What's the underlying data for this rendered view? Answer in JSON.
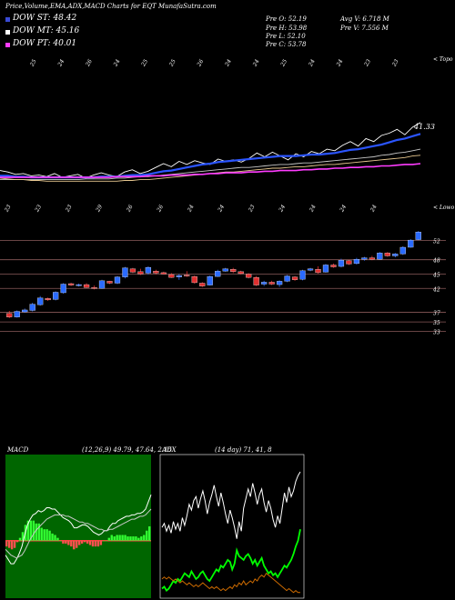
{
  "header": {
    "title": "Price,Volume,EMA,ADX,MACD Charts for EQT MunafaSutra.com"
  },
  "legend": [
    {
      "label": "DOW ST: 48.42",
      "color": "#3a4bd6"
    },
    {
      "label": "DOW MT: 45.16",
      "color": "#ffffff"
    },
    {
      "label": "DOW PT: 40.01",
      "color": "#ff3cff"
    }
  ],
  "stats": [
    {
      "label": "Pre  O: 52.19"
    },
    {
      "label": "Pre  H: 53.98"
    },
    {
      "label": "Pre  L: 52.10"
    },
    {
      "label": "Pre  C: 53.78"
    },
    {
      "label": "Avg V: 6.718  M"
    },
    {
      "label": "Pre  V: 7.556  M"
    }
  ],
  "ema_panel": {
    "top_right_label": "< Topo",
    "bottom_right_label": "< Lowo",
    "price_label": "41.33",
    "top_ticks": [
      "25",
      "24",
      "26",
      "24",
      "25",
      "25",
      "26",
      "24",
      "24",
      "25",
      "24",
      "24",
      "23",
      "23"
    ],
    "bottom_ticks": [
      "23",
      "23",
      "23",
      "29",
      "26",
      "26",
      "24",
      "24",
      "23",
      "24",
      "24",
      "24",
      "24"
    ]
  },
  "chart_data": [
    {
      "type": "line",
      "title": "",
      "series": [
        {
          "name": "",
          "color": "#ffffff",
          "values": [
            36.2,
            36.0,
            35.7,
            35.8,
            35.5,
            35.6,
            35.4,
            35.8,
            35.3,
            35.5,
            35.7,
            35.2,
            35.6,
            35.9,
            35.6,
            35.4,
            36.0,
            36.3,
            35.8,
            36.1,
            36.6,
            37.1,
            36.7,
            37.4,
            37.0,
            37.5,
            37.2,
            37.0,
            37.7,
            37.4,
            37.6,
            37.3,
            37.8,
            38.5,
            38.0,
            38.6,
            38.1,
            37.6,
            38.4,
            38.0,
            38.7,
            38.4,
            39.0,
            38.8,
            39.5,
            40.0,
            39.4,
            40.4,
            40.0,
            40.8,
            41.1,
            41.6,
            40.9,
            41.9,
            42.5
          ]
        },
        {
          "name": "",
          "color": "#2b55ff",
          "values": [
            35.5,
            35.5,
            35.4,
            35.4,
            35.3,
            35.3,
            35.3,
            35.3,
            35.3,
            35.3,
            35.3,
            35.3,
            35.3,
            35.4,
            35.4,
            35.4,
            35.5,
            35.6,
            35.6,
            35.7,
            35.9,
            36.1,
            36.2,
            36.4,
            36.6,
            36.8,
            37.0,
            37.1,
            37.3,
            37.4,
            37.5,
            37.6,
            37.7,
            37.8,
            37.9,
            38.0,
            38.1,
            38.1,
            38.1,
            38.2,
            38.3,
            38.3,
            38.4,
            38.5,
            38.7,
            38.9,
            39.0,
            39.2,
            39.4,
            39.6,
            39.9,
            40.2,
            40.4,
            40.7,
            41.0
          ]
        },
        {
          "name": "",
          "color": "#c8c8c8",
          "values": [
            35.0,
            35.0,
            35.0,
            35.0,
            35.0,
            35.0,
            35.0,
            35.0,
            35.0,
            35.0,
            35.0,
            35.1,
            35.1,
            35.1,
            35.1,
            35.2,
            35.2,
            35.3,
            35.4,
            35.4,
            35.5,
            35.6,
            35.7,
            35.8,
            35.9,
            36.0,
            36.1,
            36.2,
            36.3,
            36.4,
            36.5,
            36.6,
            36.6,
            36.7,
            36.8,
            36.9,
            37.0,
            37.0,
            37.1,
            37.2,
            37.2,
            37.3,
            37.4,
            37.5,
            37.6,
            37.7,
            37.8,
            37.9,
            38.0,
            38.2,
            38.3,
            38.5,
            38.6,
            38.8,
            39.0
          ]
        },
        {
          "name": "",
          "color": "#e8c890",
          "values": [
            35.2,
            35.1,
            35.0,
            35.0,
            34.9,
            34.9,
            34.8,
            34.8,
            34.8,
            34.8,
            34.8,
            34.8,
            34.8,
            34.8,
            34.8,
            34.8,
            34.9,
            34.9,
            35.0,
            35.0,
            35.1,
            35.2,
            35.3,
            35.4,
            35.5,
            35.6,
            35.7,
            35.8,
            35.9,
            36.0,
            36.0,
            36.1,
            36.2,
            36.3,
            36.4,
            36.5,
            36.5,
            36.6,
            36.7,
            36.7,
            36.8,
            36.9,
            37.0,
            37.0,
            37.1,
            37.2,
            37.3,
            37.4,
            37.5,
            37.6,
            37.7,
            37.8,
            37.9,
            38.1,
            38.2
          ]
        },
        {
          "name": "",
          "color": "#ff3cff",
          "values": [
            35.3,
            35.3,
            35.3,
            35.3,
            35.3,
            35.3,
            35.3,
            35.3,
            35.3,
            35.3,
            35.3,
            35.3,
            35.3,
            35.3,
            35.3,
            35.4,
            35.4,
            35.4,
            35.4,
            35.5,
            35.5,
            35.5,
            35.6,
            35.6,
            35.6,
            35.7,
            35.7,
            35.8,
            35.8,
            35.9,
            35.9,
            35.9,
            36.0,
            36.0,
            36.1,
            36.1,
            36.2,
            36.2,
            36.2,
            36.3,
            36.3,
            36.4,
            36.4,
            36.5,
            36.5,
            36.6,
            36.6,
            36.7,
            36.7,
            36.8,
            36.8,
            36.9,
            37.0,
            37.0,
            37.1
          ]
        }
      ],
      "ylim": [
        34,
        44.5
      ]
    },
    {
      "type": "candlestick",
      "y_ticks": [
        52,
        48,
        45,
        42,
        37,
        35,
        33
      ],
      "ylim": [
        31.6,
        54.4
      ],
      "candles": [
        {
          "o": 36.8,
          "h": 37.3,
          "l": 35.8,
          "c": 36.0
        },
        {
          "o": 36.0,
          "h": 37.4,
          "l": 35.9,
          "c": 37.2
        },
        {
          "o": 37.1,
          "h": 37.8,
          "l": 36.9,
          "c": 37.5
        },
        {
          "o": 37.4,
          "h": 39.0,
          "l": 37.2,
          "c": 38.7
        },
        {
          "o": 38.6,
          "h": 40.4,
          "l": 38.4,
          "c": 40.0
        },
        {
          "o": 39.9,
          "h": 40.1,
          "l": 39.4,
          "c": 39.6
        },
        {
          "o": 39.7,
          "h": 41.4,
          "l": 39.5,
          "c": 41.2
        },
        {
          "o": 41.1,
          "h": 43.1,
          "l": 40.9,
          "c": 42.9
        },
        {
          "o": 43.0,
          "h": 43.2,
          "l": 42.5,
          "c": 42.7
        },
        {
          "o": 42.6,
          "h": 43.0,
          "l": 42.4,
          "c": 42.8
        },
        {
          "o": 42.8,
          "h": 43.1,
          "l": 42.1,
          "c": 42.2
        },
        {
          "o": 42.2,
          "h": 42.6,
          "l": 41.8,
          "c": 42.0
        },
        {
          "o": 42.0,
          "h": 43.8,
          "l": 41.9,
          "c": 43.6
        },
        {
          "o": 43.5,
          "h": 43.6,
          "l": 42.9,
          "c": 43.1
        },
        {
          "o": 43.1,
          "h": 44.6,
          "l": 42.9,
          "c": 44.4
        },
        {
          "o": 44.4,
          "h": 46.5,
          "l": 44.1,
          "c": 46.3
        },
        {
          "o": 46.1,
          "h": 46.3,
          "l": 45.2,
          "c": 45.4
        },
        {
          "o": 45.5,
          "h": 46.1,
          "l": 44.8,
          "c": 45.0
        },
        {
          "o": 45.2,
          "h": 46.6,
          "l": 44.9,
          "c": 46.4
        },
        {
          "o": 45.6,
          "h": 45.9,
          "l": 44.9,
          "c": 45.2
        },
        {
          "o": 45.3,
          "h": 45.5,
          "l": 44.9,
          "c": 45.0
        },
        {
          "o": 44.9,
          "h": 45.2,
          "l": 44.2,
          "c": 44.3
        },
        {
          "o": 44.4,
          "h": 45.0,
          "l": 43.8,
          "c": 44.7
        },
        {
          "o": 44.8,
          "h": 45.6,
          "l": 44.4,
          "c": 44.6
        },
        {
          "o": 44.5,
          "h": 44.7,
          "l": 43.0,
          "c": 43.2
        },
        {
          "o": 43.1,
          "h": 43.3,
          "l": 42.3,
          "c": 42.5
        },
        {
          "o": 42.7,
          "h": 44.7,
          "l": 42.6,
          "c": 44.5
        },
        {
          "o": 44.5,
          "h": 45.9,
          "l": 44.4,
          "c": 45.6
        },
        {
          "o": 45.6,
          "h": 46.3,
          "l": 45.5,
          "c": 46.1
        },
        {
          "o": 46.0,
          "h": 46.3,
          "l": 45.2,
          "c": 45.5
        },
        {
          "o": 45.5,
          "h": 45.7,
          "l": 44.9,
          "c": 45.1
        },
        {
          "o": 45.0,
          "h": 45.2,
          "l": 44.1,
          "c": 44.3
        },
        {
          "o": 44.3,
          "h": 44.6,
          "l": 42.5,
          "c": 42.7
        },
        {
          "o": 42.9,
          "h": 43.6,
          "l": 42.5,
          "c": 43.3
        },
        {
          "o": 43.3,
          "h": 43.6,
          "l": 42.7,
          "c": 42.9
        },
        {
          "o": 42.8,
          "h": 43.7,
          "l": 42.3,
          "c": 43.5
        },
        {
          "o": 43.5,
          "h": 44.8,
          "l": 43.3,
          "c": 44.6
        },
        {
          "o": 44.4,
          "h": 44.6,
          "l": 43.6,
          "c": 43.8
        },
        {
          "o": 43.9,
          "h": 45.9,
          "l": 43.7,
          "c": 45.7
        },
        {
          "o": 45.8,
          "h": 46.3,
          "l": 45.6,
          "c": 46.1
        },
        {
          "o": 46.0,
          "h": 46.6,
          "l": 45.1,
          "c": 45.3
        },
        {
          "o": 45.4,
          "h": 47.1,
          "l": 45.3,
          "c": 46.9
        },
        {
          "o": 46.9,
          "h": 47.2,
          "l": 46.3,
          "c": 46.5
        },
        {
          "o": 46.6,
          "h": 48.2,
          "l": 46.4,
          "c": 47.9
        },
        {
          "o": 47.8,
          "h": 48.0,
          "l": 46.9,
          "c": 47.1
        },
        {
          "o": 47.2,
          "h": 48.4,
          "l": 47.0,
          "c": 48.1
        },
        {
          "o": 48.1,
          "h": 48.6,
          "l": 47.8,
          "c": 48.4
        },
        {
          "o": 48.4,
          "h": 48.8,
          "l": 47.9,
          "c": 48.1
        },
        {
          "o": 48.1,
          "h": 49.6,
          "l": 48.0,
          "c": 49.4
        },
        {
          "o": 49.4,
          "h": 49.6,
          "l": 48.6,
          "c": 48.8
        },
        {
          "o": 48.8,
          "h": 49.4,
          "l": 48.5,
          "c": 49.2
        },
        {
          "o": 49.2,
          "h": 50.8,
          "l": 49.0,
          "c": 50.6
        },
        {
          "o": 50.6,
          "h": 52.3,
          "l": 50.5,
          "c": 52.1
        },
        {
          "o": 52.2,
          "h": 54.0,
          "l": 52.1,
          "c": 53.8
        }
      ]
    },
    {
      "type": "line",
      "title": "MACD",
      "legend_text": "(12,26,9) 49.79, 47.64, 2.15",
      "series": [
        {
          "name": "",
          "color": "#ffffff",
          "values": [
            -1.0,
            -1.3,
            -1.6,
            -1.6,
            -1.3,
            -0.9,
            -0.4,
            0.4,
            1.1,
            1.5,
            1.8,
            1.9,
            2.1,
            2.0,
            2.1,
            2.3,
            2.3,
            2.2,
            2.2,
            2.0,
            1.8,
            1.6,
            1.5,
            1.4,
            1.2,
            0.9,
            0.9,
            1.0,
            1.1,
            1.1,
            1.0,
            0.8,
            0.6,
            0.5,
            0.4,
            0.5,
            0.7,
            0.7,
            1.0,
            1.2,
            1.2,
            1.4,
            1.5,
            1.6,
            1.7,
            1.7,
            1.8,
            1.8,
            1.9,
            1.9,
            2.0,
            2.2,
            2.7,
            3.2
          ]
        },
        {
          "name": "",
          "color": "#c8c8c8",
          "values": [
            -0.6,
            -0.8,
            -1.0,
            -1.1,
            -1.2,
            -1.1,
            -1.0,
            -0.7,
            -0.3,
            0.1,
            0.4,
            0.7,
            0.9,
            1.1,
            1.3,
            1.5,
            1.6,
            1.7,
            1.8,
            1.8,
            1.8,
            1.8,
            1.7,
            1.7,
            1.6,
            1.5,
            1.4,
            1.3,
            1.3,
            1.2,
            1.2,
            1.1,
            1.0,
            0.9,
            0.8,
            0.8,
            0.7,
            0.7,
            0.8,
            0.8,
            0.9,
            1.0,
            1.1,
            1.2,
            1.3,
            1.4,
            1.5,
            1.5,
            1.6,
            1.7,
            1.7,
            1.8,
            2.0,
            2.2
          ]
        }
      ],
      "histogram": [
        -0.4,
        -0.5,
        -0.6,
        -0.5,
        -0.1,
        0.2,
        0.6,
        1.1,
        1.4,
        1.4,
        1.4,
        1.2,
        1.2,
        0.9,
        0.8,
        0.8,
        0.7,
        0.5,
        0.4,
        0.2,
        0.0,
        -0.2,
        -0.2,
        -0.3,
        -0.4,
        -0.6,
        -0.5,
        -0.3,
        -0.2,
        -0.1,
        -0.2,
        -0.3,
        -0.4,
        -0.4,
        -0.4,
        -0.3,
        0.0,
        0.0,
        0.2,
        0.4,
        0.3,
        0.4,
        0.4,
        0.4,
        0.4,
        0.3,
        0.3,
        0.3,
        0.3,
        0.2,
        0.3,
        0.4,
        0.7,
        1.0
      ],
      "ylim": [
        -4,
        6
      ]
    },
    {
      "type": "line",
      "title": "ADX",
      "legend_text": "(14 day) 71, 41, 8",
      "series": [
        {
          "name": "",
          "color": "#ffffff",
          "values": [
            42,
            44,
            40,
            43,
            39,
            45,
            41,
            44,
            40,
            47,
            43,
            48,
            54,
            51,
            56,
            58,
            52,
            57,
            61,
            56,
            49,
            55,
            59,
            64,
            58,
            53,
            60,
            55,
            49,
            44,
            51,
            47,
            42,
            36,
            45,
            40,
            52,
            57,
            62,
            58,
            65,
            60,
            54,
            59,
            62,
            55,
            50,
            56,
            52,
            46,
            42,
            48,
            44,
            52,
            60,
            55,
            63,
            58,
            61,
            66,
            69,
            71
          ]
        },
        {
          "name": "",
          "color": "#00ff00",
          "values": [
            10,
            11,
            9,
            10,
            12,
            14,
            13,
            15,
            14,
            16,
            18,
            17,
            16,
            19,
            17,
            15,
            16,
            18,
            19,
            17,
            15,
            14,
            16,
            18,
            20,
            19,
            22,
            21,
            23,
            25,
            24,
            20,
            23,
            30,
            27,
            26,
            25,
            27,
            28,
            26,
            23,
            25,
            22,
            24,
            26,
            22,
            20,
            18,
            19,
            17,
            18,
            16,
            18,
            20,
            22,
            21,
            23,
            25,
            28,
            32,
            35,
            41
          ]
        },
        {
          "name": "",
          "color": "#cc6a00",
          "values": [
            15,
            16,
            15,
            16,
            15,
            14,
            15,
            14,
            13,
            14,
            13,
            12,
            13,
            12,
            11,
            12,
            11,
            12,
            13,
            12,
            11,
            10,
            11,
            10,
            11,
            10,
            9,
            10,
            9,
            10,
            11,
            10,
            12,
            11,
            13,
            12,
            14,
            12,
            13,
            14,
            13,
            15,
            14,
            16,
            17,
            16,
            18,
            17,
            16,
            15,
            14,
            13,
            12,
            11,
            10,
            9,
            10,
            9,
            8,
            9,
            8,
            8
          ]
        }
      ],
      "ylim": [
        5,
        80
      ]
    }
  ]
}
